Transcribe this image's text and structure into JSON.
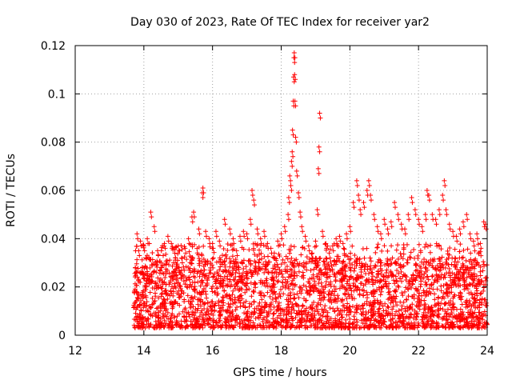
{
  "chart_data": {
    "type": "scatter",
    "title": "Day 030 of 2023, Rate Of TEC Index for receiver yar2",
    "xlabel": "GPS time / hours",
    "ylabel": "ROTI / TECUs",
    "xlim": [
      12,
      24
    ],
    "ylim": [
      0,
      0.12
    ],
    "xticks": [
      "12",
      "14",
      "16",
      "18",
      "20",
      "22",
      "24"
    ],
    "yticks": [
      "0",
      "0.02",
      "0.04",
      "0.06",
      "0.08",
      "0.1",
      "0.12"
    ],
    "grid": true,
    "marker": "+",
    "color": "#ff0000",
    "series": [
      {
        "name": "ROTI",
        "points": [
          [
            13.75,
            0.028
          ],
          [
            13.8,
            0.042
          ],
          [
            13.85,
            0.035
          ],
          [
            13.9,
            0.039
          ],
          [
            14.0,
            0.037
          ],
          [
            14.1,
            0.04
          ],
          [
            14.2,
            0.051
          ],
          [
            14.3,
            0.045
          ],
          [
            14.4,
            0.035
          ],
          [
            14.5,
            0.03
          ],
          [
            14.6,
            0.038
          ],
          [
            14.7,
            0.041
          ],
          [
            14.8,
            0.038
          ],
          [
            14.9,
            0.034
          ],
          [
            15.0,
            0.037
          ],
          [
            15.1,
            0.032
          ],
          [
            15.2,
            0.036
          ],
          [
            15.3,
            0.04
          ],
          [
            15.4,
            0.049
          ],
          [
            15.45,
            0.051
          ],
          [
            15.6,
            0.044
          ],
          [
            15.7,
            0.059
          ],
          [
            15.72,
            0.061
          ],
          [
            15.8,
            0.043
          ],
          [
            15.9,
            0.04
          ],
          [
            16.0,
            0.038
          ],
          [
            16.1,
            0.043
          ],
          [
            16.2,
            0.039
          ],
          [
            16.35,
            0.048
          ],
          [
            16.5,
            0.044
          ],
          [
            16.6,
            0.04
          ],
          [
            16.7,
            0.035
          ],
          [
            16.8,
            0.041
          ],
          [
            16.9,
            0.043
          ],
          [
            17.0,
            0.042
          ],
          [
            17.1,
            0.048
          ],
          [
            17.15,
            0.06
          ],
          [
            17.2,
            0.056
          ],
          [
            17.3,
            0.044
          ],
          [
            17.4,
            0.04
          ],
          [
            17.5,
            0.043
          ],
          [
            17.6,
            0.038
          ],
          [
            17.7,
            0.036
          ],
          [
            17.8,
            0.034
          ],
          [
            17.9,
            0.039
          ],
          [
            18.0,
            0.042
          ],
          [
            18.1,
            0.045
          ],
          [
            18.2,
            0.05
          ],
          [
            18.22,
            0.057
          ],
          [
            18.25,
            0.066
          ],
          [
            18.28,
            0.062
          ],
          [
            18.3,
            0.072
          ],
          [
            18.32,
            0.076
          ],
          [
            18.33,
            0.085
          ],
          [
            18.35,
            0.097
          ],
          [
            18.36,
            0.107
          ],
          [
            18.37,
            0.115
          ],
          [
            18.38,
            0.117
          ],
          [
            18.39,
            0.108
          ],
          [
            18.4,
            0.097
          ],
          [
            18.42,
            0.082
          ],
          [
            18.45,
            0.068
          ],
          [
            18.5,
            0.059
          ],
          [
            18.55,
            0.051
          ],
          [
            18.6,
            0.045
          ],
          [
            18.7,
            0.041
          ],
          [
            18.8,
            0.037
          ],
          [
            18.9,
            0.034
          ],
          [
            19.0,
            0.039
          ],
          [
            19.05,
            0.052
          ],
          [
            19.08,
            0.069
          ],
          [
            19.1,
            0.078
          ],
          [
            19.12,
            0.092
          ],
          [
            19.2,
            0.043
          ],
          [
            19.3,
            0.038
          ],
          [
            19.4,
            0.034
          ],
          [
            19.5,
            0.037
          ],
          [
            19.6,
            0.04
          ],
          [
            19.7,
            0.041
          ],
          [
            19.8,
            0.038
          ],
          [
            19.9,
            0.042
          ],
          [
            20.0,
            0.045
          ],
          [
            20.1,
            0.055
          ],
          [
            20.2,
            0.064
          ],
          [
            20.25,
            0.058
          ],
          [
            20.3,
            0.052
          ],
          [
            20.4,
            0.055
          ],
          [
            20.5,
            0.06
          ],
          [
            20.55,
            0.064
          ],
          [
            20.6,
            0.058
          ],
          [
            20.7,
            0.05
          ],
          [
            20.8,
            0.045
          ],
          [
            20.9,
            0.042
          ],
          [
            21.0,
            0.048
          ],
          [
            21.1,
            0.044
          ],
          [
            21.2,
            0.047
          ],
          [
            21.3,
            0.055
          ],
          [
            21.4,
            0.05
          ],
          [
            21.5,
            0.046
          ],
          [
            21.6,
            0.044
          ],
          [
            21.7,
            0.05
          ],
          [
            21.8,
            0.057
          ],
          [
            21.9,
            0.052
          ],
          [
            22.0,
            0.048
          ],
          [
            22.1,
            0.045
          ],
          [
            22.2,
            0.05
          ],
          [
            22.25,
            0.06
          ],
          [
            22.3,
            0.058
          ],
          [
            22.4,
            0.05
          ],
          [
            22.5,
            0.048
          ],
          [
            22.6,
            0.052
          ],
          [
            22.7,
            0.058
          ],
          [
            22.75,
            0.064
          ],
          [
            22.8,
            0.052
          ],
          [
            22.9,
            0.046
          ],
          [
            23.0,
            0.043
          ],
          [
            23.1,
            0.041
          ],
          [
            23.2,
            0.044
          ],
          [
            23.3,
            0.047
          ],
          [
            23.4,
            0.05
          ],
          [
            23.5,
            0.042
          ],
          [
            23.6,
            0.039
          ],
          [
            23.7,
            0.042
          ],
          [
            23.8,
            0.038
          ],
          [
            23.9,
            0.047
          ],
          [
            23.95,
            0.046
          ]
        ],
        "dense_band": {
          "x_range": [
            13.7,
            24.0
          ],
          "y_range": [
            0.003,
            0.032
          ],
          "note": "dense cloud of points, most values between ~0.005 and ~0.025"
        }
      }
    ]
  }
}
